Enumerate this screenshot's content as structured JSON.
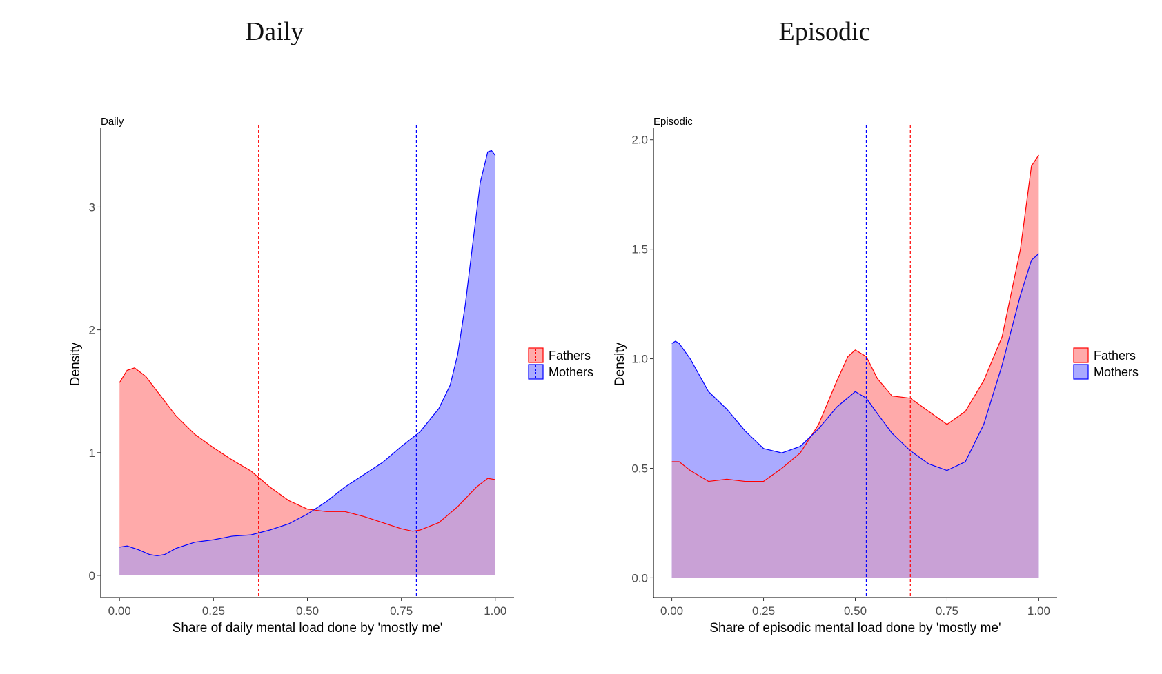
{
  "figure": {
    "left_title": "Daily",
    "right_title": "Episodic"
  },
  "colors": {
    "fathers_line": "#ff0000",
    "fathers_fill": "#ffaaaa",
    "mothers_line": "#0000ff",
    "mothers_fill": "#aaaaff",
    "overlap_fill": "#c9a1d6"
  },
  "chart_data": [
    {
      "type": "area",
      "title": "Daily",
      "xlabel": "Share of daily mental load done by 'mostly me'",
      "ylabel": "Density",
      "xlim": [
        -0.05,
        1.05
      ],
      "ylim": [
        -0.18,
        3.62
      ],
      "xticks": [
        0,
        0.25,
        0.5,
        0.75,
        1
      ],
      "xtick_labels": [
        "0.00",
        "0.25",
        "0.50",
        "0.75",
        "1.00"
      ],
      "yticks": [
        0,
        1,
        2,
        3
      ],
      "ytick_labels": [
        "0",
        "1",
        "2",
        "3"
      ],
      "grid": false,
      "legend_position": "right",
      "series": [
        {
          "name": "Fathers",
          "mean": 0.37,
          "x": [
            0,
            0.02,
            0.04,
            0.07,
            0.1,
            0.15,
            0.2,
            0.25,
            0.3,
            0.35,
            0.4,
            0.45,
            0.5,
            0.55,
            0.6,
            0.65,
            0.7,
            0.75,
            0.78,
            0.8,
            0.85,
            0.9,
            0.95,
            0.98,
            1
          ],
          "y": [
            1.57,
            1.67,
            1.69,
            1.62,
            1.5,
            1.3,
            1.15,
            1.04,
            0.94,
            0.85,
            0.72,
            0.61,
            0.54,
            0.52,
            0.52,
            0.48,
            0.43,
            0.38,
            0.36,
            0.37,
            0.43,
            0.56,
            0.72,
            0.79,
            0.78
          ]
        },
        {
          "name": "Mothers",
          "mean": 0.79,
          "x": [
            0,
            0.02,
            0.05,
            0.08,
            0.1,
            0.12,
            0.15,
            0.2,
            0.25,
            0.3,
            0.35,
            0.4,
            0.45,
            0.5,
            0.55,
            0.6,
            0.65,
            0.7,
            0.75,
            0.8,
            0.85,
            0.88,
            0.9,
            0.92,
            0.94,
            0.96,
            0.98,
            0.99,
            1
          ],
          "y": [
            0.23,
            0.24,
            0.21,
            0.17,
            0.16,
            0.17,
            0.22,
            0.27,
            0.29,
            0.32,
            0.33,
            0.37,
            0.42,
            0.5,
            0.6,
            0.72,
            0.82,
            0.92,
            1.05,
            1.17,
            1.36,
            1.55,
            1.8,
            2.2,
            2.7,
            3.2,
            3.45,
            3.46,
            3.42
          ]
        }
      ]
    },
    {
      "type": "area",
      "title": "Episodic",
      "xlabel": "Share of episodic mental load done by 'mostly me'",
      "ylabel": "Density",
      "xlim": [
        -0.05,
        1.05
      ],
      "ylim": [
        -0.09,
        2.04
      ],
      "xticks": [
        0,
        0.25,
        0.5,
        0.75,
        1
      ],
      "xtick_labels": [
        "0.00",
        "0.25",
        "0.50",
        "0.75",
        "1.00"
      ],
      "yticks": [
        0,
        0.5,
        1,
        1.5,
        2
      ],
      "ytick_labels": [
        "0.0",
        "0.5",
        "1.0",
        "1.5",
        "2.0"
      ],
      "grid": false,
      "legend_position": "right",
      "series": [
        {
          "name": "Fathers",
          "mean": 0.65,
          "x": [
            0,
            0.02,
            0.05,
            0.1,
            0.15,
            0.2,
            0.25,
            0.3,
            0.35,
            0.4,
            0.45,
            0.48,
            0.5,
            0.53,
            0.56,
            0.6,
            0.65,
            0.7,
            0.75,
            0.8,
            0.85,
            0.9,
            0.95,
            0.98,
            1
          ],
          "y": [
            0.53,
            0.53,
            0.49,
            0.44,
            0.45,
            0.44,
            0.44,
            0.5,
            0.57,
            0.7,
            0.9,
            1.01,
            1.04,
            1.01,
            0.91,
            0.83,
            0.82,
            0.76,
            0.7,
            0.76,
            0.9,
            1.1,
            1.5,
            1.88,
            1.93
          ]
        },
        {
          "name": "Mothers",
          "mean": 0.53,
          "x": [
            0,
            0.01,
            0.02,
            0.05,
            0.1,
            0.15,
            0.2,
            0.25,
            0.3,
            0.35,
            0.4,
            0.45,
            0.5,
            0.53,
            0.56,
            0.6,
            0.65,
            0.7,
            0.75,
            0.8,
            0.85,
            0.9,
            0.95,
            0.98,
            1
          ],
          "y": [
            1.07,
            1.08,
            1.07,
            1.0,
            0.85,
            0.77,
            0.67,
            0.59,
            0.57,
            0.6,
            0.68,
            0.78,
            0.85,
            0.82,
            0.75,
            0.66,
            0.58,
            0.52,
            0.49,
            0.53,
            0.7,
            0.97,
            1.29,
            1.45,
            1.48
          ]
        }
      ]
    }
  ]
}
